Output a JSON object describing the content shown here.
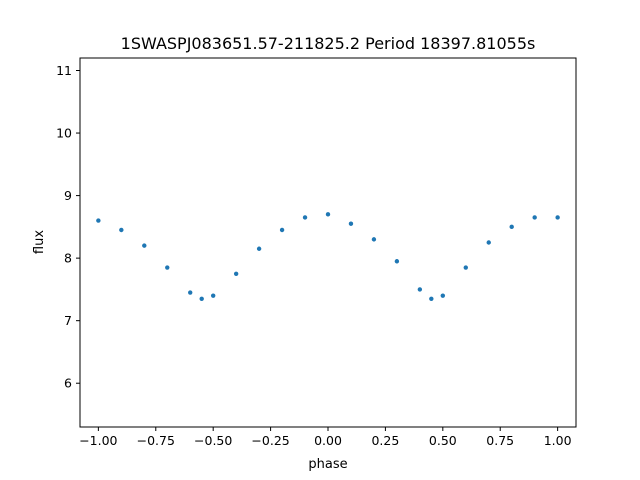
{
  "chart_data": {
    "type": "scatter",
    "title": "1SWASPJ083651.57-211825.2 Period 18397.81055s",
    "xlabel": "phase",
    "ylabel": "flux",
    "xlim": [
      -1.08,
      1.08
    ],
    "ylim": [
      5.3,
      11.2
    ],
    "xticks": [
      -1.0,
      -0.75,
      -0.5,
      -0.25,
      0.0,
      0.25,
      0.5,
      0.75,
      1.0
    ],
    "xtick_labels": [
      "−1.00",
      "−0.75",
      "−0.50",
      "−0.25",
      "0.00",
      "0.25",
      "0.50",
      "0.75",
      "1.00"
    ],
    "yticks": [
      6,
      7,
      8,
      9,
      10,
      11
    ],
    "ytick_labels": [
      "6",
      "7",
      "8",
      "9",
      "10",
      "11"
    ],
    "grid": false,
    "marker_color": "#1f77b4",
    "series": [
      {
        "x": [
          -1.0,
          -0.9,
          -0.8,
          -0.7,
          -0.6,
          -0.55,
          -0.5,
          -0.4,
          -0.3,
          -0.2,
          -0.1,
          0.0,
          0.1,
          0.2,
          0.3,
          0.4,
          0.45,
          0.5,
          0.6,
          0.7,
          0.8,
          0.9,
          1.0
        ],
        "y": [
          8.6,
          8.45,
          8.2,
          7.85,
          7.45,
          7.35,
          7.4,
          7.75,
          8.15,
          8.45,
          8.65,
          8.7,
          8.55,
          8.3,
          7.95,
          7.5,
          7.35,
          7.4,
          7.85,
          8.25,
          8.5,
          8.65,
          8.65
        ]
      }
    ]
  }
}
